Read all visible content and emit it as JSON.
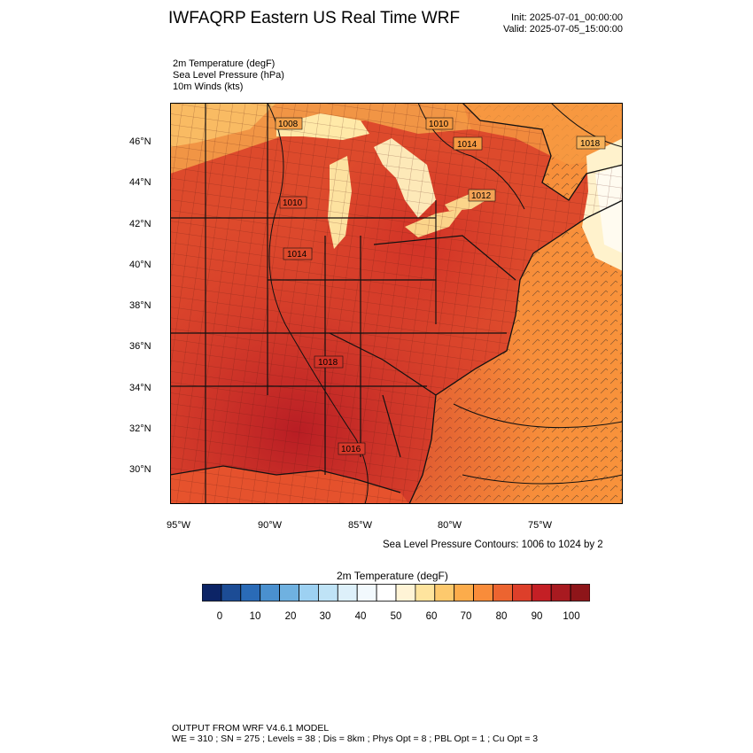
{
  "header": {
    "title": "IWFAQRP Eastern US Real Time WRF",
    "init": "Init: 2025-07-01_00:00:00",
    "valid": "Valid: 2025-07-05_15:00:00"
  },
  "fields": [
    "2m Temperature   (degF)",
    "Sea Level Pressure   (hPa)",
    "10m Winds   (kts)"
  ],
  "map": {
    "lat_labels": [
      "46°N",
      "44°N",
      "42°N",
      "40°N",
      "38°N",
      "36°N",
      "34°N",
      "32°N",
      "30°N"
    ],
    "lon_labels": [
      "95°W",
      "90°W",
      "85°W",
      "80°W",
      "75°W"
    ],
    "isobar_labels": [
      "1008",
      "1010",
      "1014",
      "1018",
      "1012",
      "1010",
      "1014",
      "1018",
      "1016"
    ],
    "contour_note": "Sea Level Pressure Contours: 1006 to 1024 by 2"
  },
  "colorbar": {
    "title": "2m Temperature  (degF)",
    "labels": [
      "0",
      "10",
      "20",
      "30",
      "40",
      "50",
      "60",
      "70",
      "80",
      "90",
      "100"
    ],
    "colors": [
      "#0c2466",
      "#1c4c95",
      "#2a6bb7",
      "#4a90cf",
      "#6fb1e0",
      "#9dd1f2",
      "#bfe3f6",
      "#ddf0fa",
      "#f2f9fd",
      "#ffffff",
      "#fff4d6",
      "#fee49e",
      "#fdc96d",
      "#fcac4b",
      "#f98c3a",
      "#ec6430",
      "#dd3f2a",
      "#c41f25",
      "#a81a20",
      "#8e1519"
    ]
  },
  "footer": {
    "line1": "OUTPUT FROM WRF V4.6.1 MODEL",
    "line2": "WE = 310 ; SN = 275 ; Levels = 38 ; Dis = 8km ; Phys Opt = 8 ; PBL Opt = 1 ; Cu Opt = 3"
  }
}
